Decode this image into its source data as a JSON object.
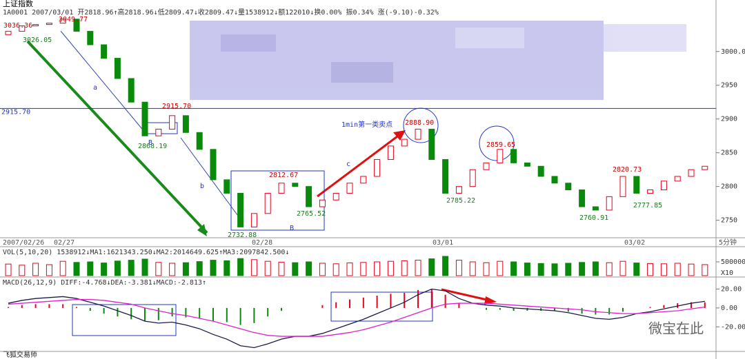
{
  "chart_data": {
    "type": "candlestick",
    "title": "上证指数",
    "info": "1A0001 2007/03/01 开2818.96↑高2818.96↓低2809.47↓收2809.47↓量1538912↓额122010↓换0.00% 振0.34% 涨(-9.10)-0.32%",
    "open": [
      3025,
      3030,
      3038,
      3040,
      3042,
      3048,
      3030,
      3010,
      2990,
      2960,
      2925,
      2875,
      2885,
      2905,
      2880,
      2855,
      2810,
      2790,
      2740,
      2760,
      2790,
      2805,
      2800,
      2770,
      2780,
      2790,
      2805,
      2815,
      2840,
      2860,
      2870,
      2885,
      2840,
      2790,
      2800,
      2825,
      2835,
      2855,
      2835,
      2830,
      2815,
      2805,
      2795,
      2770,
      2765,
      2785,
      2815,
      2790,
      2795,
      2808,
      2815,
      2825
    ],
    "close": [
      3030,
      3038,
      3040,
      3042,
      3048,
      3030,
      3010,
      2990,
      2960,
      2925,
      2875,
      2885,
      2905,
      2880,
      2855,
      2810,
      2790,
      2740,
      2760,
      2790,
      2805,
      2800,
      2770,
      2780,
      2790,
      2805,
      2815,
      2840,
      2860,
      2870,
      2885,
      2840,
      2790,
      2800,
      2825,
      2835,
      2855,
      2835,
      2830,
      2815,
      2805,
      2795,
      2770,
      2765,
      2785,
      2815,
      2790,
      2795,
      2808,
      2815,
      2825,
      2830
    ],
    "up_color": "#e8001c",
    "down_color": "#0a8a0a",
    "ylim": [
      2720,
      3060
    ],
    "yticks": [
      {
        "value": 3000,
        "label": "3000.0"
      },
      2950,
      2900,
      2850,
      2800,
      2750
    ],
    "hline": {
      "value": 2915.7,
      "label": "2915.70"
    },
    "x_labels": [
      "2007/02/26",
      "02/27",
      "02/28",
      "03/01",
      "03/02",
      "5分钟"
    ],
    "annotations": [
      "3036.36",
      "3049.77",
      "3026.05",
      "2868.19",
      "2915.70",
      "2732.88",
      "2812.67",
      "2765.52",
      "2888.90",
      "1min第一类卖点",
      "2785.22",
      "2859.65",
      "2760.91",
      "2820.73",
      "2777.85",
      "a",
      "B",
      "b",
      "c",
      "B"
    ],
    "volume": {
      "title": "VOL(5,10,20) 1538912↓MA1:1621343.250↓MA2:2014649.625↑MA3:2097842.500↓",
      "values": [
        420000,
        380000,
        450000,
        400000,
        520000,
        480000,
        500000,
        460000,
        530000,
        560000,
        600000,
        480000,
        450000,
        470000,
        510000,
        560000,
        540000,
        620000,
        580000,
        520000,
        490000,
        470000,
        500000,
        450000,
        430000,
        460000,
        480000,
        500000,
        520000,
        540000,
        560000,
        610000,
        700000,
        560000,
        500000,
        470000,
        520000,
        500000,
        460000,
        440000,
        430000,
        450000,
        480000,
        500000,
        470000,
        520000,
        460000,
        440000,
        430000,
        450000,
        420000,
        400000
      ],
      "ylim": [
        0,
        700000
      ],
      "yticks": [
        500000
      ],
      "unit_label": "X10"
    },
    "macd": {
      "title": "MACD(26,12,9) DIFF:-4.768↓DEA:-3.381↓MACD:-2.813↑",
      "diff": [
        5,
        8,
        10,
        11,
        12,
        10,
        6,
        2,
        -3,
        -8,
        -14,
        -16,
        -15,
        -18,
        -22,
        -28,
        -33,
        -40,
        -42,
        -38,
        -33,
        -30,
        -30,
        -27,
        -22,
        -17,
        -12,
        -6,
        0,
        6,
        14,
        20,
        18,
        10,
        5,
        3,
        2,
        0,
        -1,
        -2,
        -3,
        -5,
        -8,
        -11,
        -12,
        -10,
        -6,
        -4,
        -1,
        2,
        5,
        7
      ],
      "dea": [
        4,
        5,
        6,
        7,
        8,
        9,
        9,
        8,
        6,
        4,
        0,
        -3,
        -6,
        -8,
        -11,
        -14,
        -18,
        -22,
        -26,
        -29,
        -30,
        -30,
        -30,
        -30,
        -28,
        -26,
        -23,
        -19,
        -15,
        -10,
        -5,
        0,
        4,
        5,
        5,
        5,
        4,
        3,
        2,
        1,
        0,
        -1,
        -2,
        -4,
        -5,
        -6,
        -6,
        -5,
        -4,
        -3,
        -1,
        1
      ],
      "hist": [
        1,
        3,
        4,
        4,
        4,
        1,
        -3,
        -6,
        -9,
        -12,
        -14,
        -13,
        -9,
        -10,
        -11,
        -14,
        -15,
        -18,
        -16,
        -9,
        -3,
        0,
        0,
        3,
        6,
        9,
        11,
        13,
        15,
        16,
        19,
        20,
        14,
        5,
        0,
        -2,
        -2,
        -3,
        -3,
        -3,
        -3,
        -4,
        -6,
        -7,
        -7,
        -4,
        0,
        1,
        3,
        5,
        6,
        6
      ],
      "diff_color": "#1a1a4a",
      "dea_color": "#e020c8",
      "ylim": [
        -46,
        24
      ],
      "yticks": [
        {
          "value": 20,
          "label": "20.00"
        },
        {
          "value": 0,
          "label": "0.00"
        },
        {
          "value": -20,
          "label": "-20.00"
        }
      ]
    },
    "watermark": "微宝在此",
    "footer": "飞狐交易师"
  }
}
